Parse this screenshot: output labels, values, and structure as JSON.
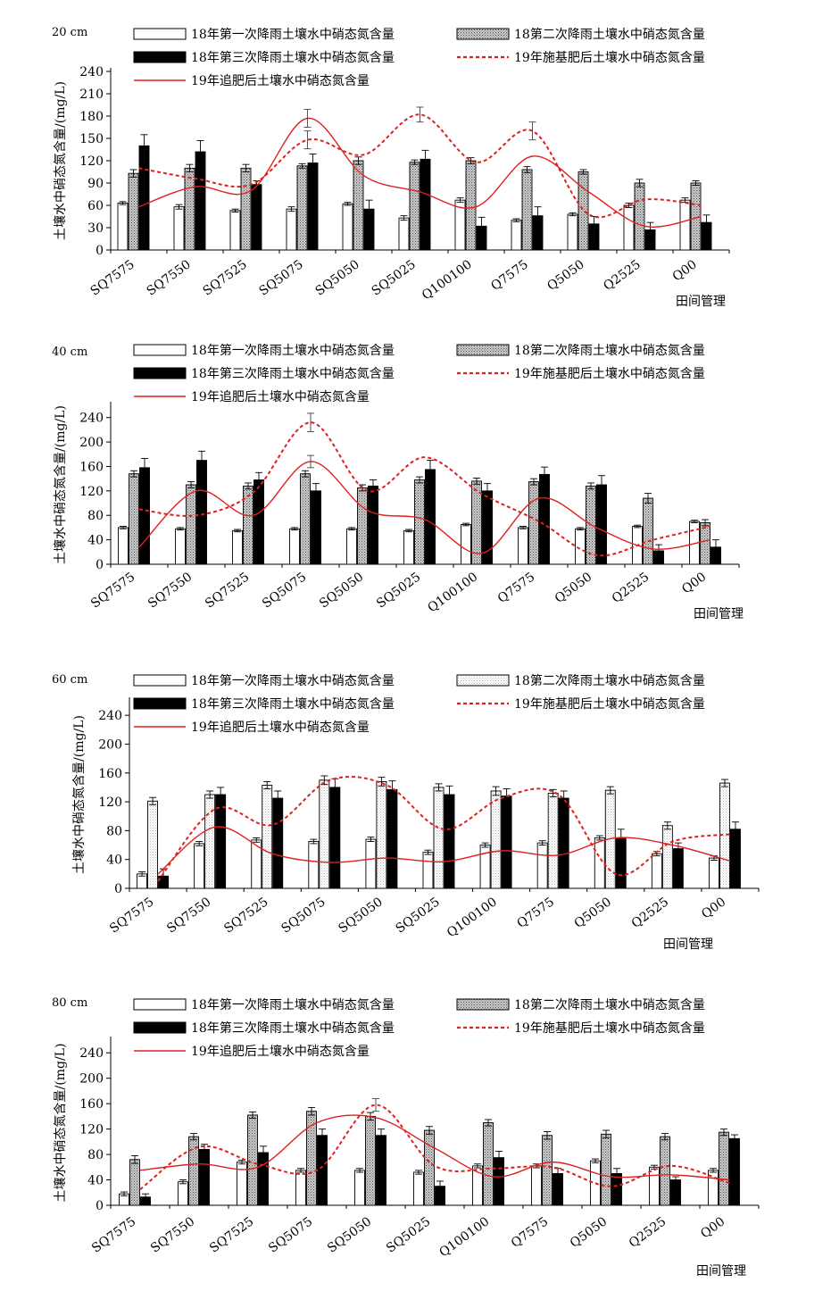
{
  "legend_labels": [
    "18年第一次降雨土壤水中硝态氮含量",
    "18年第二次降雨土壤水中硝态氮含量",
    "18年第三次降雨土壤水中硝态氮含量",
    "19年施基肥后土壤水中硝态氮含量",
    "19年追肥后土壤水中硝态氮含量"
  ],
  "colors": {
    "line": "#e0201e",
    "bar_outline": "#000000",
    "bar_solid": "#000000",
    "bar_white": "#ffffff"
  },
  "chart_data": [
    {
      "type": "bar",
      "depth_label": "20 cm",
      "ylabel": "土壤水中硝态氮含量/(mg/L)",
      "xlabel": "田间管理",
      "ylim": [
        0,
        240
      ],
      "yticks": [
        0,
        30,
        60,
        90,
        120,
        150,
        180,
        210,
        240
      ],
      "categories": [
        "SQ7575",
        "SQ7550",
        "SQ7525",
        "SQ5075",
        "SQ5050",
        "SQ5025",
        "Q100100",
        "Q7575",
        "Q5050",
        "Q2525",
        "Q00"
      ],
      "series": [
        {
          "name": "18年第一次降雨土壤水中硝态氮含量",
          "kind": "bar",
          "fill": "white",
          "values": [
            63,
            58,
            53,
            55,
            62,
            43,
            67,
            40,
            48,
            60,
            67
          ],
          "errors": [
            2,
            3,
            2,
            3,
            2,
            3,
            3,
            2,
            2,
            3,
            3
          ]
        },
        {
          "name": "18第二次降雨土壤水中硝态氮含量",
          "kind": "bar",
          "fill": "dotted-gray",
          "values": [
            103,
            110,
            110,
            113,
            120,
            118,
            120,
            108,
            105,
            90,
            90
          ],
          "errors": [
            5,
            5,
            5,
            3,
            5,
            3,
            4,
            4,
            3,
            5,
            3
          ]
        },
        {
          "name": "18年第三次降雨土壤水中硝态氮含量",
          "kind": "bar",
          "fill": "black",
          "values": [
            140,
            132,
            88,
            117,
            55,
            122,
            32,
            46,
            35,
            27,
            37
          ],
          "errors": [
            15,
            15,
            5,
            12,
            12,
            12,
            12,
            12,
            10,
            10,
            10
          ]
        },
        {
          "name": "19年施基肥后土壤水中硝态氮含量",
          "kind": "dashed-line",
          "values": [
            110,
            96,
            88,
            148,
            128,
            182,
            118,
            160,
            48,
            68,
            60
          ],
          "errors": [
            0,
            0,
            0,
            12,
            0,
            10,
            0,
            12,
            0,
            0,
            0
          ]
        },
        {
          "name": "19年追肥后土壤水中硝态氮含量",
          "kind": "line",
          "values": [
            58,
            85,
            80,
            177,
            100,
            78,
            58,
            126,
            78,
            32,
            45
          ],
          "errors": [
            0,
            0,
            0,
            12,
            0,
            0,
            0,
            0,
            0,
            0,
            0
          ]
        }
      ]
    },
    {
      "type": "bar",
      "depth_label": "40 cm",
      "ylabel": "土壤水中硝态氮含量/(mg/L)",
      "xlabel": "田间管理",
      "ylim": [
        0,
        260
      ],
      "yticks": [
        0,
        40,
        80,
        120,
        160,
        200,
        240
      ],
      "categories": [
        "SQ7575",
        "SQ7550",
        "SQ7525",
        "SQ5075",
        "SQ5050",
        "SQ5025",
        "Q100100",
        "Q7575",
        "Q5050",
        "Q2525",
        "Q00"
      ],
      "series": [
        {
          "name": "18年第一次降雨土壤水中硝态氮含量",
          "kind": "bar",
          "fill": "white",
          "values": [
            60,
            58,
            55,
            58,
            58,
            55,
            65,
            60,
            58,
            62,
            70
          ],
          "errors": [
            2,
            2,
            2,
            2,
            2,
            2,
            2,
            2,
            2,
            2,
            2
          ]
        },
        {
          "name": "18第二次降雨土壤水中硝态氮含量",
          "kind": "bar",
          "fill": "dotted-gray",
          "values": [
            148,
            130,
            128,
            148,
            125,
            138,
            136,
            135,
            128,
            108,
            68
          ],
          "errors": [
            5,
            5,
            5,
            5,
            5,
            5,
            5,
            5,
            5,
            8,
            5
          ]
        },
        {
          "name": "18年第三次降雨土壤水中硝态氮含量",
          "kind": "bar",
          "fill": "black",
          "values": [
            158,
            170,
            138,
            120,
            128,
            155,
            120,
            147,
            130,
            22,
            28
          ],
          "errors": [
            15,
            15,
            12,
            12,
            10,
            15,
            12,
            12,
            15,
            10,
            12
          ]
        },
        {
          "name": "19年施基肥后土壤水中硝态氮含量",
          "kind": "dashed-line",
          "values": [
            90,
            80,
            118,
            232,
            120,
            175,
            115,
            70,
            15,
            40,
            62
          ],
          "errors": [
            0,
            0,
            0,
            15,
            0,
            0,
            0,
            0,
            0,
            0,
            0
          ]
        },
        {
          "name": "19年追肥后土壤水中硝态氮含量",
          "kind": "line",
          "values": [
            28,
            120,
            80,
            168,
            88,
            73,
            18,
            108,
            60,
            25,
            40
          ],
          "errors": [
            0,
            0,
            0,
            10,
            0,
            0,
            0,
            0,
            0,
            0,
            0
          ]
        }
      ]
    },
    {
      "type": "bar",
      "depth_label": "60 cm",
      "ylabel": "土壤水中硝态氮含量/(mg/L)",
      "xlabel": "田间管理",
      "ylim": [
        0,
        260
      ],
      "yticks": [
        0,
        40,
        80,
        120,
        160,
        200,
        240
      ],
      "categories": [
        "SQ7575",
        "SQ7550",
        "SQ7525",
        "SQ5075",
        "SQ5050",
        "SQ5025",
        "Q100100",
        "Q7575",
        "Q5050",
        "Q2525",
        "Q00"
      ],
      "series": [
        {
          "name": "18年第一次降雨土壤水中硝态氮含量",
          "kind": "bar",
          "fill": "white",
          "values": [
            20,
            62,
            67,
            65,
            68,
            50,
            60,
            63,
            70,
            48,
            42
          ],
          "errors": [
            3,
            3,
            3,
            3,
            3,
            3,
            3,
            3,
            3,
            3,
            3
          ]
        },
        {
          "name": "18第二次降雨土壤水中硝态氮含量",
          "kind": "bar",
          "fill": "dotted-white",
          "values": [
            121,
            130,
            143,
            150,
            148,
            140,
            135,
            132,
            136,
            87,
            146
          ],
          "errors": [
            5,
            5,
            5,
            6,
            6,
            5,
            6,
            5,
            5,
            5,
            5
          ]
        },
        {
          "name": "18年第三次降雨土壤水中硝态氮含量",
          "kind": "bar",
          "fill": "black",
          "values": [
            17,
            130,
            125,
            140,
            137,
            130,
            128,
            125,
            70,
            55,
            82
          ],
          "errors": [
            10,
            10,
            10,
            12,
            12,
            12,
            10,
            10,
            12,
            8,
            10
          ]
        },
        {
          "name": "19年施基肥后土壤水中硝态氮含量",
          "kind": "dashed-line",
          "values": [
            10,
            110,
            88,
            150,
            143,
            82,
            125,
            130,
            20,
            65,
            75
          ],
          "errors": [
            0,
            0,
            0,
            0,
            0,
            0,
            0,
            0,
            0,
            0,
            0
          ]
        },
        {
          "name": "19年追肥后土壤水中硝态氮含量",
          "kind": "line",
          "values": [
            20,
            85,
            48,
            36,
            42,
            37,
            52,
            46,
            70,
            60,
            38
          ],
          "errors": [
            0,
            0,
            0,
            0,
            0,
            0,
            0,
            0,
            0,
            0,
            0
          ]
        }
      ]
    },
    {
      "type": "bar",
      "depth_label": "80 cm",
      "ylabel": "土壤水中硝态氮含量/(mg/L)",
      "xlabel": "田间管理",
      "ylim": [
        0,
        260
      ],
      "yticks": [
        0,
        40,
        80,
        120,
        160,
        200,
        240
      ],
      "categories": [
        "SQ7575",
        "SQ7550",
        "SQ7525",
        "SQ5075",
        "SQ5050",
        "SQ5025",
        "Q100100",
        "Q7575",
        "Q5050",
        "Q2525",
        "Q00"
      ],
      "series": [
        {
          "name": "18年第一次降雨土壤水中硝态氮含量",
          "kind": "bar",
          "fill": "white",
          "values": [
            18,
            37,
            68,
            55,
            55,
            52,
            62,
            62,
            70,
            60,
            55
          ],
          "errors": [
            3,
            3,
            3,
            3,
            3,
            3,
            3,
            3,
            3,
            3,
            3
          ]
        },
        {
          "name": "18第二次降雨土壤水中硝态氮含量",
          "kind": "bar",
          "fill": "dotted-gray",
          "values": [
            72,
            108,
            142,
            148,
            140,
            118,
            130,
            110,
            112,
            108,
            115
          ],
          "errors": [
            6,
            5,
            5,
            6,
            6,
            6,
            5,
            6,
            6,
            5,
            5
          ]
        },
        {
          "name": "18年第三次降雨土壤水中硝态氮含量",
          "kind": "bar",
          "fill": "black",
          "values": [
            13,
            88,
            83,
            110,
            110,
            30,
            75,
            50,
            50,
            40,
            105
          ],
          "errors": [
            5,
            8,
            10,
            10,
            10,
            8,
            10,
            8,
            8,
            5,
            6
          ]
        },
        {
          "name": "19年施基肥后土壤水中硝态氮含量",
          "kind": "dashed-line",
          "values": [
            25,
            92,
            65,
            55,
            158,
            62,
            58,
            60,
            30,
            62,
            35
          ],
          "errors": [
            0,
            0,
            0,
            0,
            10,
            0,
            0,
            0,
            0,
            0,
            0
          ]
        },
        {
          "name": "19年追肥后土壤水中硝态氮含量",
          "kind": "line",
          "values": [
            55,
            65,
            60,
            130,
            138,
            90,
            45,
            68,
            45,
            48,
            40
          ],
          "errors": [
            0,
            0,
            0,
            0,
            0,
            0,
            0,
            0,
            0,
            0,
            0
          ]
        }
      ]
    }
  ]
}
